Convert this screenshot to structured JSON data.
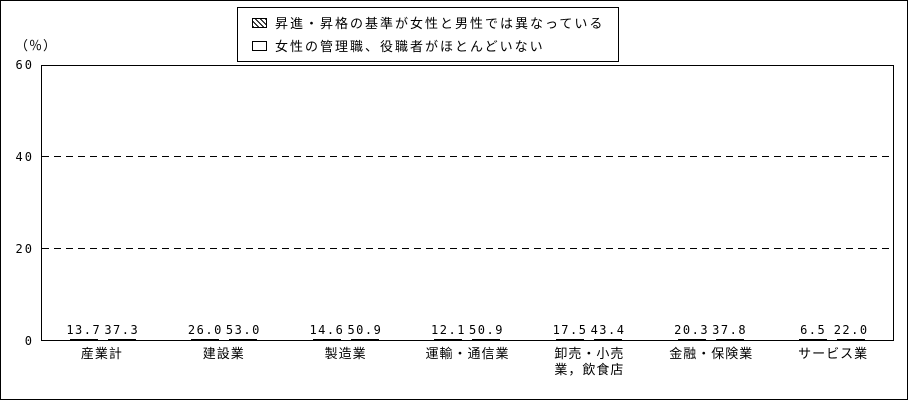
{
  "ylabel": "（％）",
  "legend": {
    "items": [
      {
        "swatch": "hatch",
        "label": "昇進・昇格の基準が女性と男性では異なっている"
      },
      {
        "swatch": "plain",
        "label": "女性の管理職、役職者がほとんどいない"
      }
    ]
  },
  "chart_data": {
    "type": "bar",
    "title": "",
    "xlabel": "",
    "ylabel": "（％）",
    "categories": [
      "産業計",
      "建設業",
      "製造業",
      "運輸・通信業",
      "卸売・小売\n業，飲食店",
      "金融・保険業",
      "サービス業"
    ],
    "series": [
      {
        "name": "昇進・昇格の基準が女性と男性では異なっている",
        "style": "hatch",
        "values": [
          13.7,
          26.0,
          14.6,
          12.1,
          17.5,
          20.3,
          6.5
        ]
      },
      {
        "name": "女性の管理職、役職者がほとんどいない",
        "style": "plain",
        "values": [
          37.3,
          53.0,
          50.9,
          50.9,
          43.4,
          37.8,
          22.0
        ]
      }
    ],
    "ylim": [
      0,
      60
    ],
    "yticks": [
      0,
      20,
      40,
      60
    ],
    "gridlines": [
      20,
      40
    ],
    "grid": "dashed-horizontal",
    "legend_position": "top-center"
  }
}
